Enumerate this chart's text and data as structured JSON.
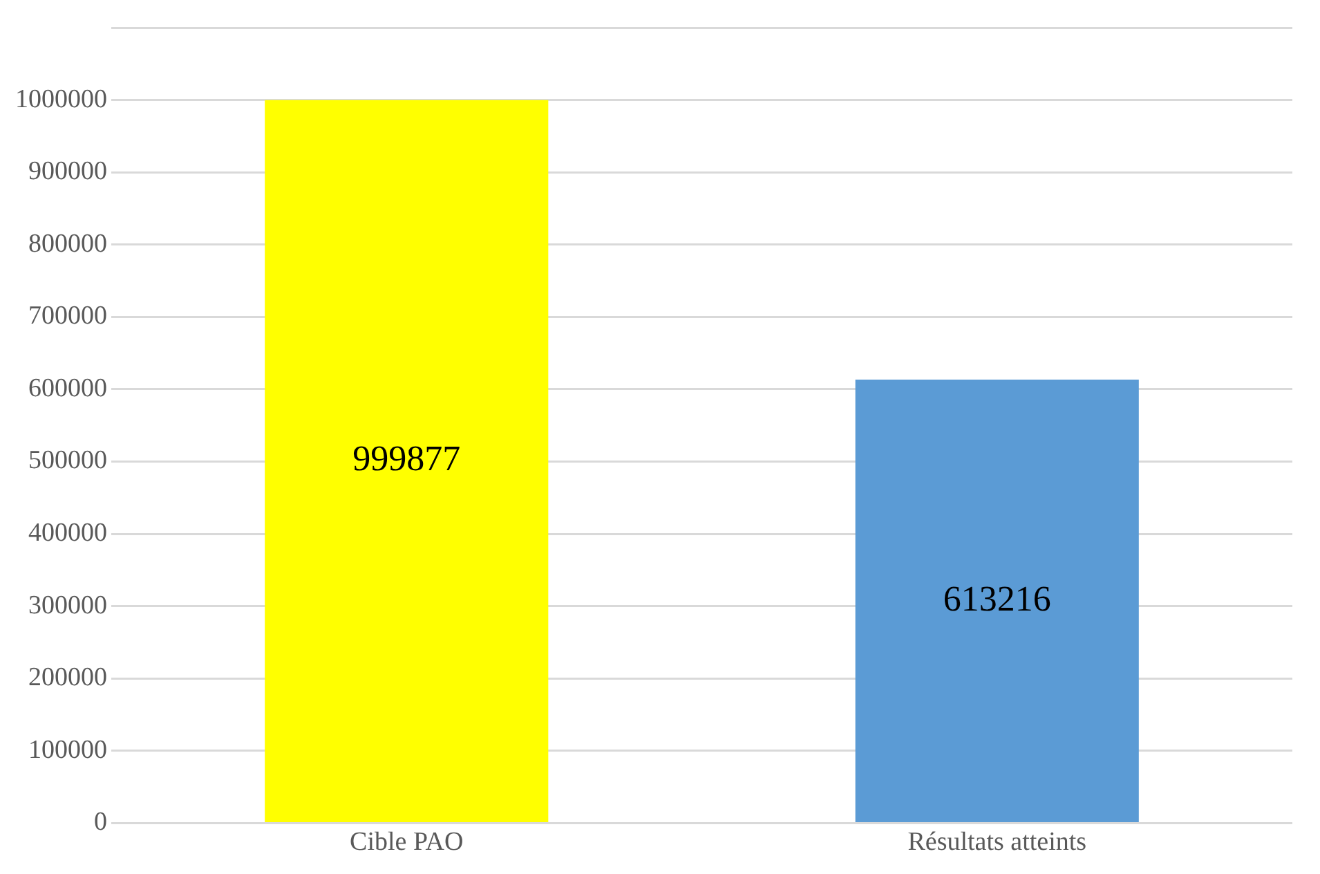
{
  "chart_data": {
    "type": "bar",
    "categories": [
      "Cible PAO",
      "Résultats atteints"
    ],
    "values": [
      999877,
      613216
    ],
    "colors": [
      "#ffff00",
      "#5b9bd5"
    ],
    "ylim": [
      0,
      1100000
    ],
    "yticks": [
      0,
      100000,
      200000,
      300000,
      400000,
      500000,
      600000,
      700000,
      800000,
      900000,
      1000000,
      {
        "value": 1100000,
        "label": null
      }
    ],
    "grid": "y",
    "data_labels": true
  }
}
